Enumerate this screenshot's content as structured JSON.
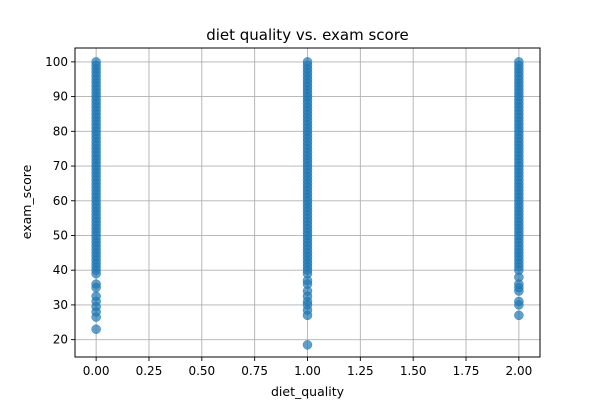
{
  "chart_data": {
    "type": "scatter",
    "title": "diet quality vs. exam score",
    "xlabel": "diet_quality",
    "ylabel": "exam_score",
    "xlim": [
      -0.1,
      2.1
    ],
    "ylim": [
      15,
      104
    ],
    "xticks": [
      "0.00",
      "0.25",
      "0.50",
      "0.75",
      "1.00",
      "1.25",
      "1.50",
      "1.75",
      "2.00"
    ],
    "xtick_values": [
      0,
      0.25,
      0.5,
      0.75,
      1.0,
      1.25,
      1.5,
      1.75,
      2.0
    ],
    "yticks": [
      "20",
      "30",
      "40",
      "50",
      "60",
      "70",
      "80",
      "90",
      "100"
    ],
    "ytick_values": [
      20,
      30,
      40,
      50,
      60,
      70,
      80,
      90,
      100
    ],
    "grid": true,
    "color": "#1f77b4",
    "series": [
      {
        "points": [
          {
            "x": 0,
            "y": 23
          },
          {
            "x": 0,
            "y": 26.5
          },
          {
            "x": 0,
            "y": 28
          },
          {
            "x": 0,
            "y": 29.5
          },
          {
            "x": 0,
            "y": 31
          },
          {
            "x": 0,
            "y": 32.5
          },
          {
            "x": 0,
            "y": 35
          },
          {
            "x": 0,
            "y": 36
          },
          {
            "x": 0,
            "y": 39
          },
          {
            "x": 0,
            "y": 40
          },
          {
            "x": 0,
            "y": 41
          },
          {
            "x": 0,
            "y": 42
          },
          {
            "x": 0,
            "y": 43
          },
          {
            "x": 0,
            "y": 44
          },
          {
            "x": 0,
            "y": 45
          },
          {
            "x": 0,
            "y": 46
          },
          {
            "x": 0,
            "y": 47
          },
          {
            "x": 0,
            "y": 48
          },
          {
            "x": 0,
            "y": 49
          },
          {
            "x": 0,
            "y": 50
          },
          {
            "x": 0,
            "y": 51
          },
          {
            "x": 0,
            "y": 52
          },
          {
            "x": 0,
            "y": 53
          },
          {
            "x": 0,
            "y": 54
          },
          {
            "x": 0,
            "y": 55
          },
          {
            "x": 0,
            "y": 56
          },
          {
            "x": 0,
            "y": 57
          },
          {
            "x": 0,
            "y": 58
          },
          {
            "x": 0,
            "y": 59
          },
          {
            "x": 0,
            "y": 60
          },
          {
            "x": 0,
            "y": 61
          },
          {
            "x": 0,
            "y": 62
          },
          {
            "x": 0,
            "y": 63
          },
          {
            "x": 0,
            "y": 64
          },
          {
            "x": 0,
            "y": 65
          },
          {
            "x": 0,
            "y": 66
          },
          {
            "x": 0,
            "y": 67
          },
          {
            "x": 0,
            "y": 68
          },
          {
            "x": 0,
            "y": 69
          },
          {
            "x": 0,
            "y": 70
          },
          {
            "x": 0,
            "y": 71
          },
          {
            "x": 0,
            "y": 72
          },
          {
            "x": 0,
            "y": 73
          },
          {
            "x": 0,
            "y": 74
          },
          {
            "x": 0,
            "y": 75
          },
          {
            "x": 0,
            "y": 76
          },
          {
            "x": 0,
            "y": 77
          },
          {
            "x": 0,
            "y": 78
          },
          {
            "x": 0,
            "y": 79
          },
          {
            "x": 0,
            "y": 80
          },
          {
            "x": 0,
            "y": 81
          },
          {
            "x": 0,
            "y": 82
          },
          {
            "x": 0,
            "y": 83
          },
          {
            "x": 0,
            "y": 84
          },
          {
            "x": 0,
            "y": 85
          },
          {
            "x": 0,
            "y": 86
          },
          {
            "x": 0,
            "y": 87
          },
          {
            "x": 0,
            "y": 88
          },
          {
            "x": 0,
            "y": 89
          },
          {
            "x": 0,
            "y": 90
          },
          {
            "x": 0,
            "y": 91
          },
          {
            "x": 0,
            "y": 92
          },
          {
            "x": 0,
            "y": 93
          },
          {
            "x": 0,
            "y": 94
          },
          {
            "x": 0,
            "y": 95
          },
          {
            "x": 0,
            "y": 96
          },
          {
            "x": 0,
            "y": 97
          },
          {
            "x": 0,
            "y": 98
          },
          {
            "x": 0,
            "y": 99
          },
          {
            "x": 0,
            "y": 100
          },
          {
            "x": 1,
            "y": 18.5
          },
          {
            "x": 1,
            "y": 27
          },
          {
            "x": 1,
            "y": 28.5
          },
          {
            "x": 1,
            "y": 30
          },
          {
            "x": 1,
            "y": 31
          },
          {
            "x": 1,
            "y": 32.5
          },
          {
            "x": 1,
            "y": 34
          },
          {
            "x": 1,
            "y": 36
          },
          {
            "x": 1,
            "y": 37
          },
          {
            "x": 1,
            "y": 39
          },
          {
            "x": 1,
            "y": 40
          },
          {
            "x": 1,
            "y": 41
          },
          {
            "x": 1,
            "y": 42
          },
          {
            "x": 1,
            "y": 43
          },
          {
            "x": 1,
            "y": 44
          },
          {
            "x": 1,
            "y": 45
          },
          {
            "x": 1,
            "y": 46
          },
          {
            "x": 1,
            "y": 47
          },
          {
            "x": 1,
            "y": 48
          },
          {
            "x": 1,
            "y": 49
          },
          {
            "x": 1,
            "y": 50
          },
          {
            "x": 1,
            "y": 51
          },
          {
            "x": 1,
            "y": 52
          },
          {
            "x": 1,
            "y": 53
          },
          {
            "x": 1,
            "y": 54
          },
          {
            "x": 1,
            "y": 55
          },
          {
            "x": 1,
            "y": 56
          },
          {
            "x": 1,
            "y": 57
          },
          {
            "x": 1,
            "y": 58
          },
          {
            "x": 1,
            "y": 59
          },
          {
            "x": 1,
            "y": 60
          },
          {
            "x": 1,
            "y": 61
          },
          {
            "x": 1,
            "y": 62
          },
          {
            "x": 1,
            "y": 63
          },
          {
            "x": 1,
            "y": 64
          },
          {
            "x": 1,
            "y": 65
          },
          {
            "x": 1,
            "y": 66
          },
          {
            "x": 1,
            "y": 67
          },
          {
            "x": 1,
            "y": 68
          },
          {
            "x": 1,
            "y": 69
          },
          {
            "x": 1,
            "y": 70
          },
          {
            "x": 1,
            "y": 71
          },
          {
            "x": 1,
            "y": 72
          },
          {
            "x": 1,
            "y": 73
          },
          {
            "x": 1,
            "y": 74
          },
          {
            "x": 1,
            "y": 75
          },
          {
            "x": 1,
            "y": 76
          },
          {
            "x": 1,
            "y": 77
          },
          {
            "x": 1,
            "y": 78
          },
          {
            "x": 1,
            "y": 79
          },
          {
            "x": 1,
            "y": 80
          },
          {
            "x": 1,
            "y": 81
          },
          {
            "x": 1,
            "y": 82
          },
          {
            "x": 1,
            "y": 83
          },
          {
            "x": 1,
            "y": 84
          },
          {
            "x": 1,
            "y": 85
          },
          {
            "x": 1,
            "y": 86
          },
          {
            "x": 1,
            "y": 87
          },
          {
            "x": 1,
            "y": 88
          },
          {
            "x": 1,
            "y": 89
          },
          {
            "x": 1,
            "y": 90
          },
          {
            "x": 1,
            "y": 91
          },
          {
            "x": 1,
            "y": 92
          },
          {
            "x": 1,
            "y": 93
          },
          {
            "x": 1,
            "y": 94
          },
          {
            "x": 1,
            "y": 95
          },
          {
            "x": 1,
            "y": 96
          },
          {
            "x": 1,
            "y": 97
          },
          {
            "x": 1,
            "y": 98
          },
          {
            "x": 1,
            "y": 99
          },
          {
            "x": 1,
            "y": 100
          },
          {
            "x": 2,
            "y": 27
          },
          {
            "x": 2,
            "y": 30
          },
          {
            "x": 2,
            "y": 31
          },
          {
            "x": 2,
            "y": 34
          },
          {
            "x": 2,
            "y": 35
          },
          {
            "x": 2,
            "y": 36
          },
          {
            "x": 2,
            "y": 38
          },
          {
            "x": 2,
            "y": 40
          },
          {
            "x": 2,
            "y": 41
          },
          {
            "x": 2,
            "y": 42
          },
          {
            "x": 2,
            "y": 43
          },
          {
            "x": 2,
            "y": 44
          },
          {
            "x": 2,
            "y": 45
          },
          {
            "x": 2,
            "y": 46
          },
          {
            "x": 2,
            "y": 47
          },
          {
            "x": 2,
            "y": 48
          },
          {
            "x": 2,
            "y": 49
          },
          {
            "x": 2,
            "y": 50
          },
          {
            "x": 2,
            "y": 51
          },
          {
            "x": 2,
            "y": 52
          },
          {
            "x": 2,
            "y": 53
          },
          {
            "x": 2,
            "y": 54
          },
          {
            "x": 2,
            "y": 55
          },
          {
            "x": 2,
            "y": 56
          },
          {
            "x": 2,
            "y": 57
          },
          {
            "x": 2,
            "y": 58
          },
          {
            "x": 2,
            "y": 59
          },
          {
            "x": 2,
            "y": 60
          },
          {
            "x": 2,
            "y": 61
          },
          {
            "x": 2,
            "y": 62
          },
          {
            "x": 2,
            "y": 63
          },
          {
            "x": 2,
            "y": 64
          },
          {
            "x": 2,
            "y": 65
          },
          {
            "x": 2,
            "y": 66
          },
          {
            "x": 2,
            "y": 67
          },
          {
            "x": 2,
            "y": 68
          },
          {
            "x": 2,
            "y": 69
          },
          {
            "x": 2,
            "y": 70
          },
          {
            "x": 2,
            "y": 71
          },
          {
            "x": 2,
            "y": 72
          },
          {
            "x": 2,
            "y": 73
          },
          {
            "x": 2,
            "y": 74
          },
          {
            "x": 2,
            "y": 75
          },
          {
            "x": 2,
            "y": 76
          },
          {
            "x": 2,
            "y": 77
          },
          {
            "x": 2,
            "y": 78
          },
          {
            "x": 2,
            "y": 79
          },
          {
            "x": 2,
            "y": 80
          },
          {
            "x": 2,
            "y": 81
          },
          {
            "x": 2,
            "y": 82
          },
          {
            "x": 2,
            "y": 83
          },
          {
            "x": 2,
            "y": 84
          },
          {
            "x": 2,
            "y": 85
          },
          {
            "x": 2,
            "y": 86
          },
          {
            "x": 2,
            "y": 87
          },
          {
            "x": 2,
            "y": 88
          },
          {
            "x": 2,
            "y": 89
          },
          {
            "x": 2,
            "y": 90
          },
          {
            "x": 2,
            "y": 91
          },
          {
            "x": 2,
            "y": 92
          },
          {
            "x": 2,
            "y": 93
          },
          {
            "x": 2,
            "y": 94
          },
          {
            "x": 2,
            "y": 95
          },
          {
            "x": 2,
            "y": 96
          },
          {
            "x": 2,
            "y": 97
          },
          {
            "x": 2,
            "y": 98
          },
          {
            "x": 2,
            "y": 99
          },
          {
            "x": 2,
            "y": 100
          }
        ]
      }
    ]
  }
}
